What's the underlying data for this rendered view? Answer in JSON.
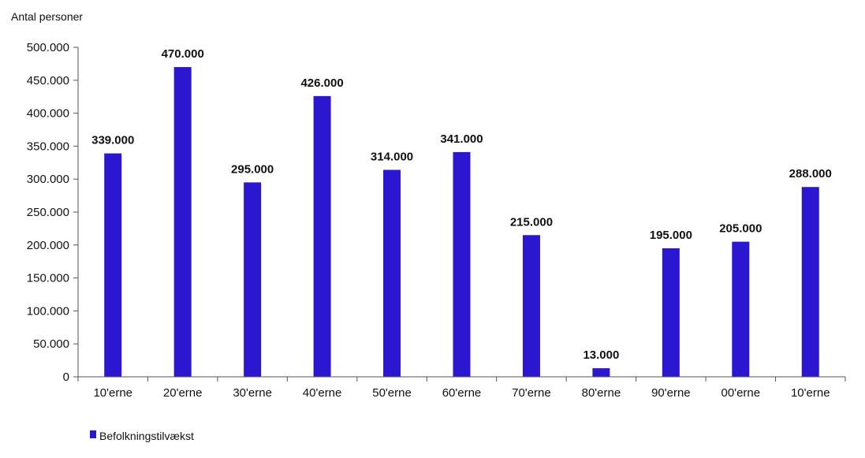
{
  "chart_data": {
    "type": "bar",
    "title": "",
    "xlabel": "",
    "ylabel": "Antal personer",
    "ylim": [
      0,
      500000
    ],
    "yticks": [
      0,
      50000,
      100000,
      150000,
      200000,
      250000,
      300000,
      350000,
      400000,
      450000,
      500000
    ],
    "ytick_labels": [
      "0",
      "50.000",
      "100.000",
      "150.000",
      "200.000",
      "250.000",
      "300.000",
      "350.000",
      "400.000",
      "450.000",
      "500.000"
    ],
    "categories": [
      "10'erne",
      "20'erne",
      "30'erne",
      "40'erne",
      "50'erne",
      "60'erne",
      "70'erne",
      "80'erne",
      "90'erne",
      "00'erne",
      "10'erne"
    ],
    "series": [
      {
        "name": "Befolkningstilvækst",
        "color": "#2a17cf",
        "values": [
          339000,
          470000,
          295000,
          426000,
          314000,
          341000,
          215000,
          13000,
          195000,
          205000,
          288000
        ],
        "data_labels": [
          "339.000",
          "470.000",
          "295.000",
          "426.000",
          "314.000",
          "341.000",
          "215.000",
          "13.000",
          "195.000",
          "205.000",
          "288.000"
        ]
      }
    ],
    "grid": false,
    "legend": "bottom-left"
  }
}
